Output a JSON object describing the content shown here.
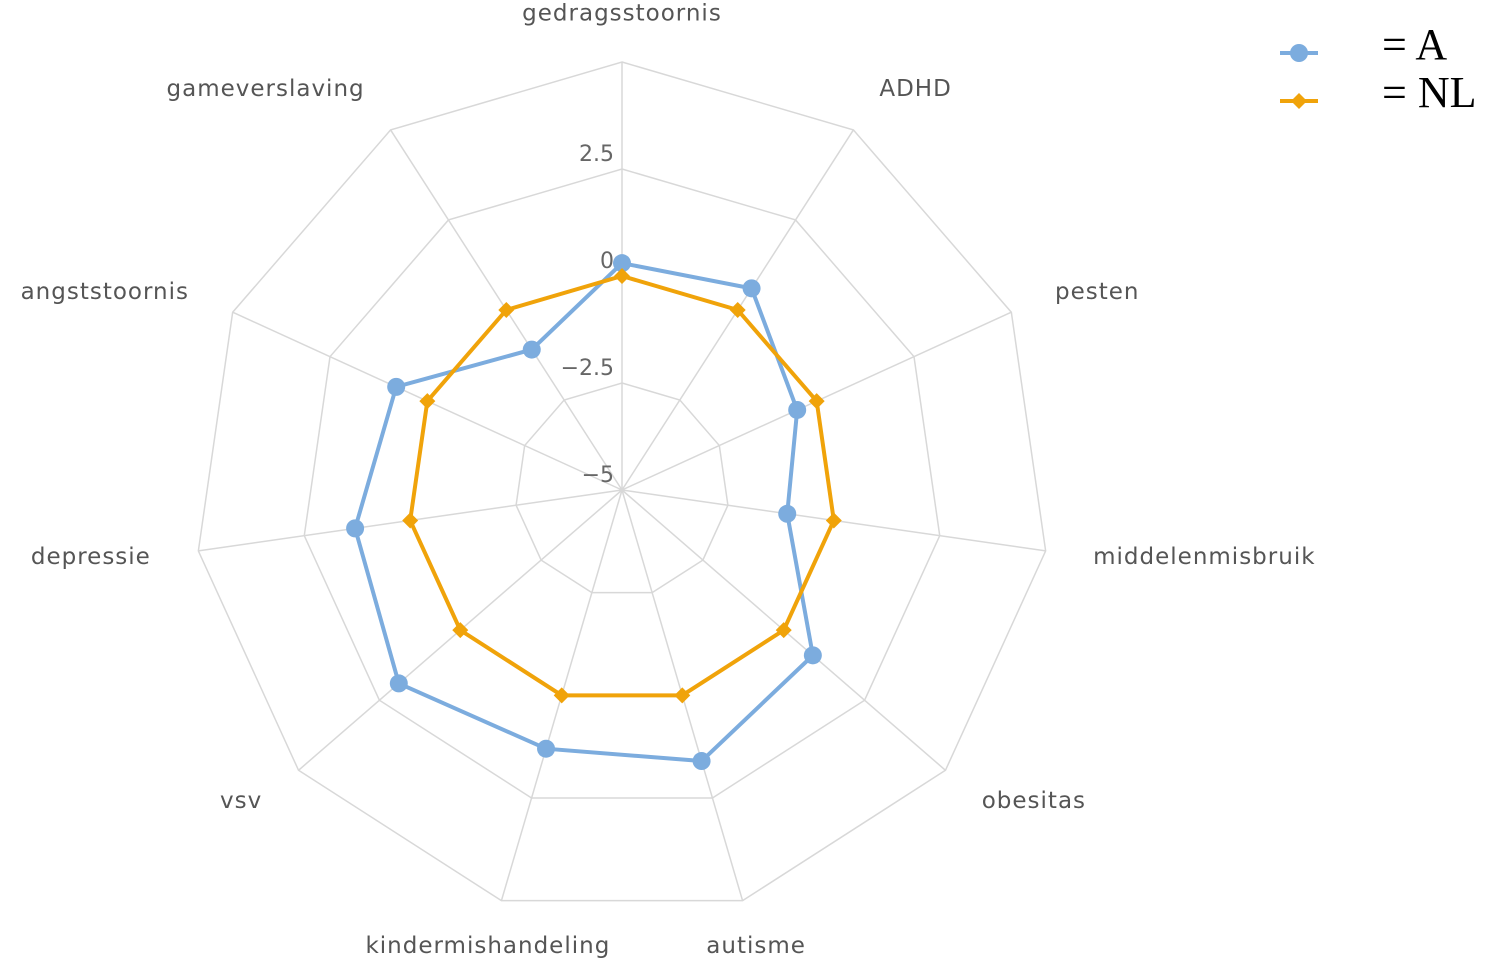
{
  "chart_data": {
    "type": "radar",
    "categories": [
      "gedragsstoornis",
      "ADHD",
      "pesten",
      "middelenmisbruik",
      "obesitas",
      "autisme",
      "kindermishandeling",
      "vsv",
      "depressie",
      "angststoornis",
      "gameverslaving"
    ],
    "series": [
      {
        "name": "= A",
        "color": "#7cacde",
        "marker": "circle",
        "values": [
          0.3,
          0.6,
          -0.5,
          -1.1,
          0.9,
          1.6,
          1.3,
          1.9,
          1.3,
          0.8,
          -1.1
        ]
      },
      {
        "name": "= NL",
        "color": "#f0a30a",
        "marker": "diamond",
        "values": [
          0,
          0,
          0,
          0,
          0,
          0,
          0,
          0,
          0,
          0,
          0
        ]
      }
    ],
    "ylim": [
      -5,
      5
    ],
    "yticks": [
      {
        "value": -5,
        "label": "−5"
      },
      {
        "value": -2.5,
        "label": "−2.5"
      },
      0,
      2.5
    ],
    "grid": true,
    "legend": "top-right"
  }
}
